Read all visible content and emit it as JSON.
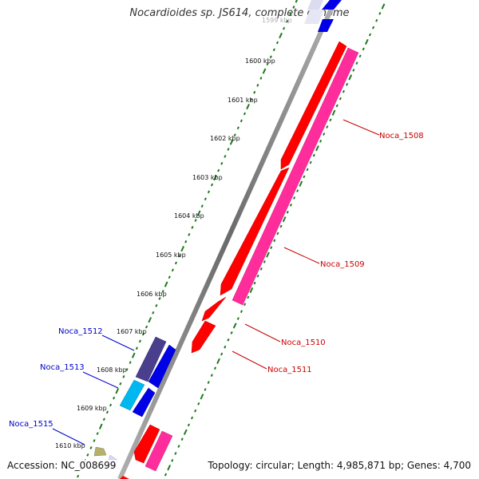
{
  "title": "Nocardioides sp. JS614, complete genome",
  "partial_top_label": "1599 kbp",
  "footer": {
    "accession": "Accession: NC_008699",
    "stats": "Topology: circular; Length: 4,985,871 bp; Genes: 4,700"
  },
  "colors": {
    "backbone": "#8a8a8a",
    "ticks": "#1d7a1d",
    "forward_cds": "#ff0000",
    "forward_cds_alt": "#ff2d9b",
    "reverse_cds": "#0000e6",
    "reverse_cds_alt": "#00b7f0",
    "reverse_cds_dark": "#4a3f8c",
    "label_forward": "#cc0000",
    "label_reverse": "#0000cc",
    "other_feature": "#b5b06b"
  },
  "kbp_labels": [
    "1600 kbp",
    "1601 kbp",
    "1602 kbp",
    "1603 kbp",
    "1604 kbp",
    "1605 kbp",
    "1606 kbp",
    "1607 kbp",
    "1608 kbp",
    "1609 kbp",
    "1610 kbp"
  ],
  "gene_labels": {
    "noca_1508": "Noca_1508",
    "noca_1509": "Noca_1509",
    "noca_1510": "Noca_1510",
    "noca_1511": "Noca_1511",
    "noca_1512": "Noca_1512",
    "noca_1513": "Noca_1513",
    "noca_1515": "Noca_1515"
  }
}
